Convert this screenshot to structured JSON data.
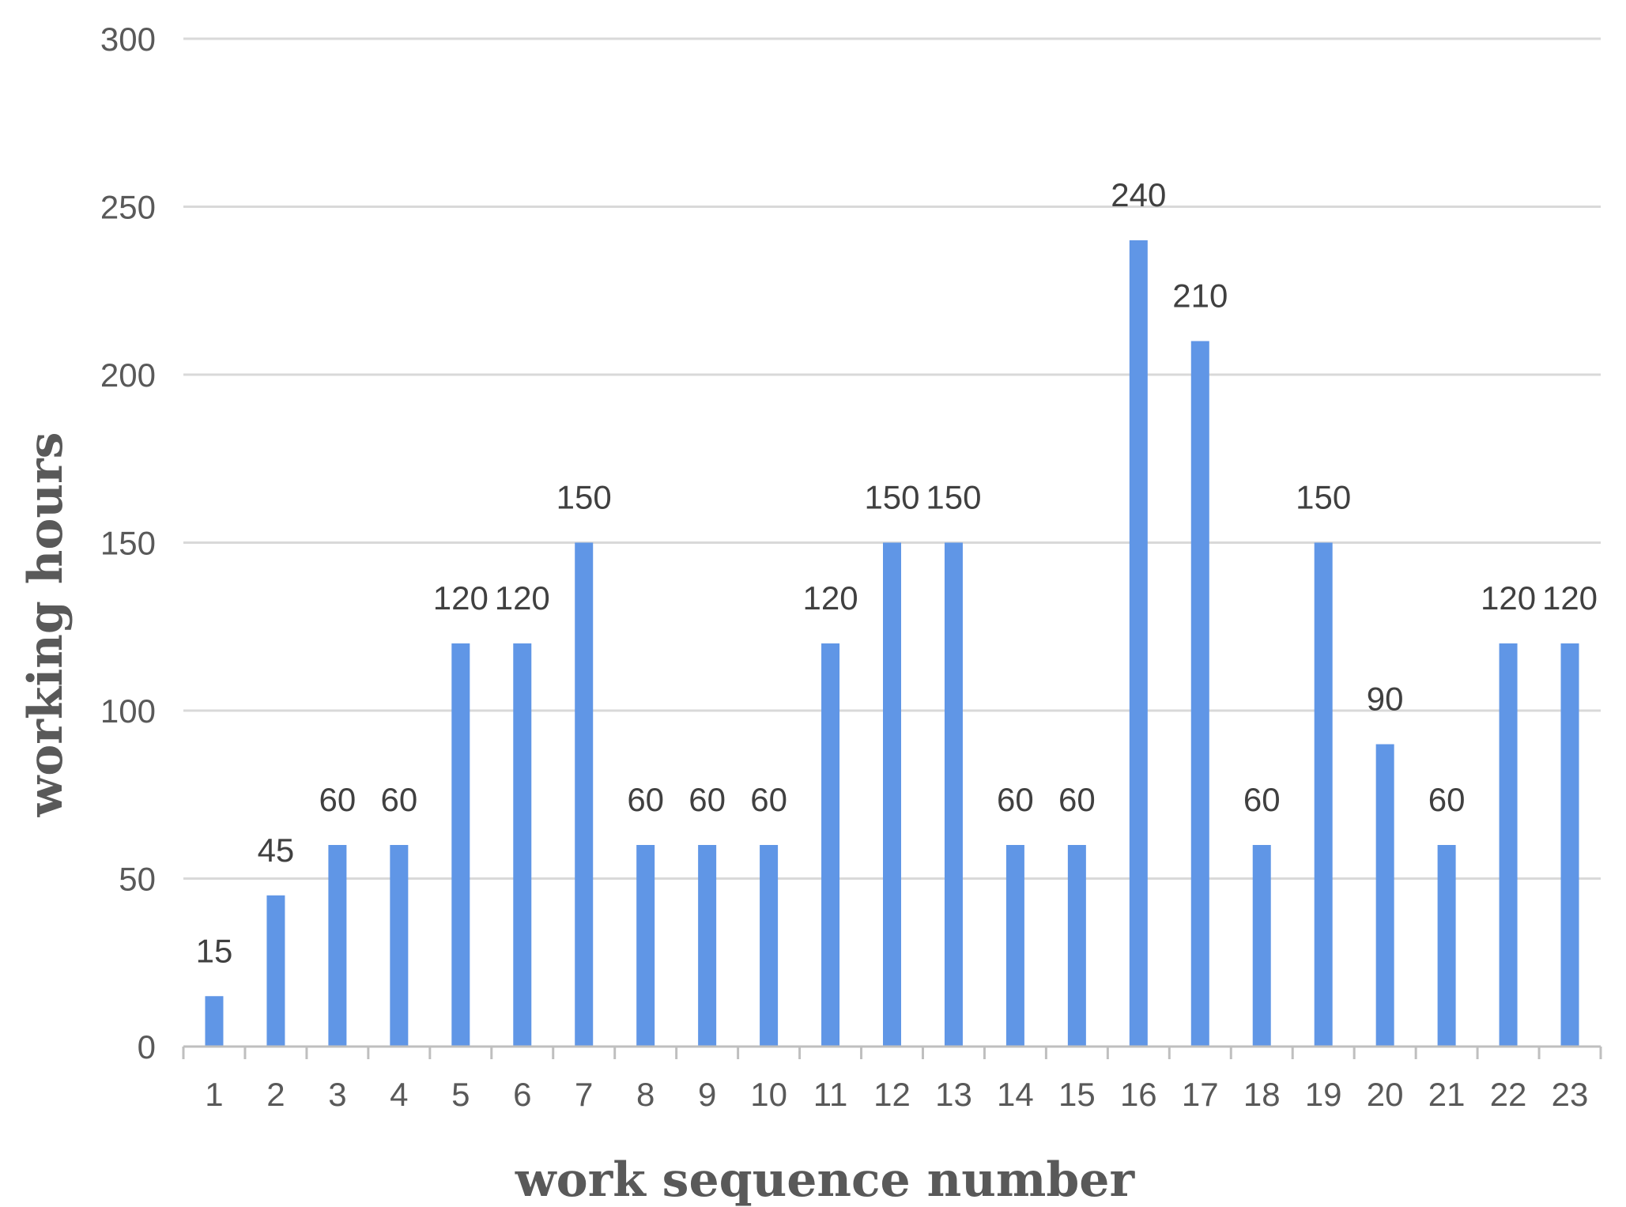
{
  "chart_data": {
    "type": "bar",
    "categories": [
      "1",
      "2",
      "3",
      "4",
      "5",
      "6",
      "7",
      "8",
      "9",
      "10",
      "11",
      "12",
      "13",
      "14",
      "15",
      "16",
      "17",
      "18",
      "19",
      "20",
      "21",
      "22",
      "23"
    ],
    "values": [
      15,
      45,
      60,
      60,
      120,
      120,
      150,
      60,
      60,
      60,
      120,
      150,
      150,
      60,
      60,
      240,
      210,
      60,
      150,
      90,
      60,
      120,
      120
    ],
    "data_labels": [
      "15",
      "45",
      "60",
      "60",
      "120",
      "120",
      "150",
      "60",
      "60",
      "60",
      "120",
      "150",
      "150",
      "60",
      "60",
      "240",
      "210",
      "60",
      "150",
      "90",
      "60",
      "120",
      "120"
    ],
    "title": "",
    "xlabel": "work sequence number",
    "ylabel": "working hours",
    "ylim": [
      0,
      300
    ],
    "yticks": [
      0,
      50,
      100,
      150,
      200,
      250,
      300
    ],
    "ytick_labels": [
      "0",
      "50",
      "100",
      "150",
      "200",
      "250",
      "300"
    ],
    "grid": true,
    "legend": "none",
    "bar_color": "#6096E6",
    "grid_color": "#D9D9D9",
    "axis_color": "#BFBFBF"
  }
}
